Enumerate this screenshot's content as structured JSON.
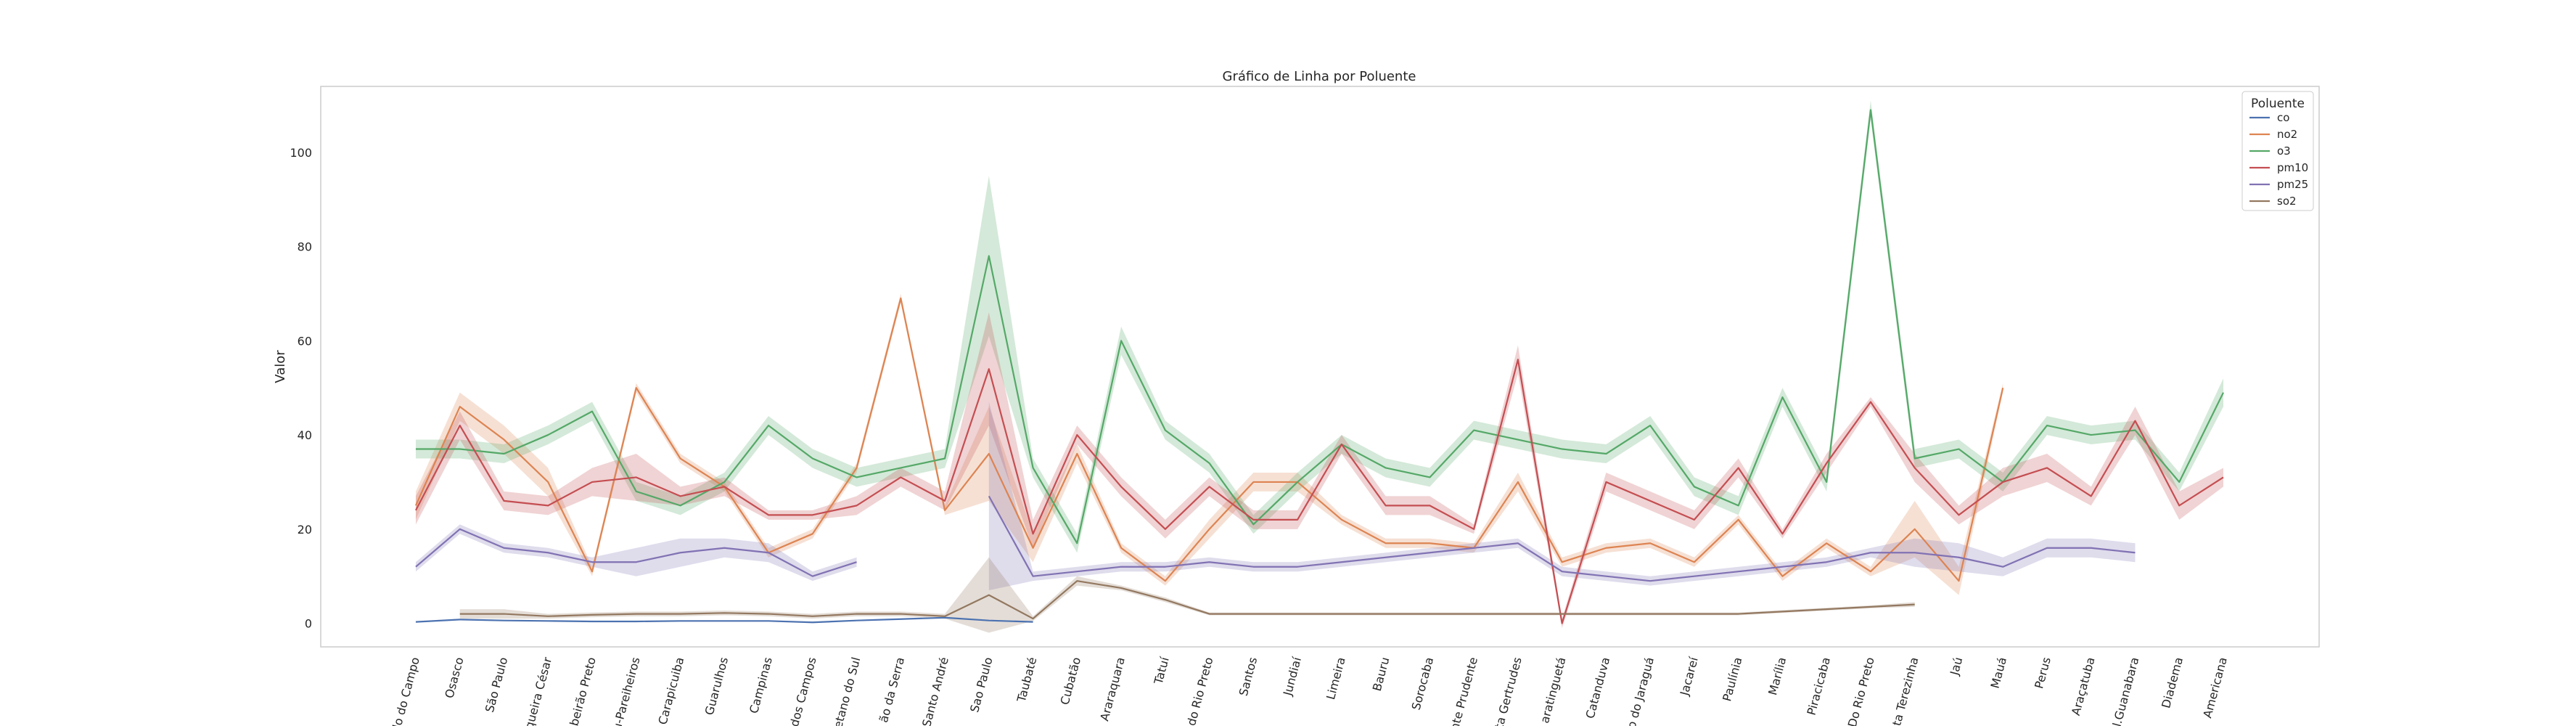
{
  "chart_data": {
    "type": "line",
    "title": "Gráfico de Linha por Poluente",
    "xlabel": "",
    "ylabel": "Valor",
    "ylim": [
      -5,
      114
    ],
    "yticks": [
      0,
      20,
      40,
      60,
      80,
      100
    ],
    "grid": false,
    "legend_placement": "top-right",
    "legend_title": "Poluente",
    "categories": [
      "lo do Campo",
      "Osasco",
      "São Paulo",
      "queira César",
      "beirão Preto",
      "ı-Pareiheiros",
      "Carapicuiba",
      "Guarulhos",
      "Campinas",
      "dos Campos",
      "etano do Sul",
      "ão da Serra",
      "Santo André",
      "Sao Paulo",
      "Taubaté",
      "Cubatão",
      "Araraquara",
      "Tatuí",
      "do Rio Preto",
      "Santos",
      "Jundiaí",
      "Limeira",
      "Bauru",
      "Sorocaba",
      "nte Prudente",
      "ta Gertrudes",
      "aratinguetá",
      "Catanduva",
      "o do Jaraguá",
      "Jacareí",
      "Paulínia",
      "Marília",
      "Piracicaba",
      "Do Rio Preto",
      "ta Terezinha",
      "Jaú",
      "Mauá",
      "Perus",
      "Araçatuba",
      "l.Guanabara",
      "Diadema",
      "Americana"
    ],
    "series": [
      {
        "name": "co",
        "color": "#4c72b0",
        "values": [
          0.3,
          0.8,
          0.6,
          0.5,
          0.4,
          0.4,
          0.5,
          0.5,
          0.5,
          0.2,
          0.6,
          0.9,
          1.2,
          0.6,
          0.3,
          null,
          null,
          null,
          null,
          null,
          null,
          null,
          null,
          null,
          null,
          null,
          null,
          null,
          null,
          null,
          null,
          null,
          null,
          null,
          null,
          null,
          null,
          null,
          null,
          null,
          null,
          null
        ]
      },
      {
        "name": "no2",
        "color": "#dd8452",
        "values": [
          25,
          46,
          39,
          30,
          11,
          50,
          35,
          29,
          15,
          19,
          33,
          69,
          24,
          36,
          16,
          36,
          16,
          9,
          20,
          30,
          30,
          22,
          17,
          17,
          16,
          30,
          13,
          16,
          17,
          13,
          22,
          10,
          17,
          11,
          20,
          9,
          50,
          null,
          null,
          null,
          null,
          null
        ],
        "band": [
          3,
          3,
          3,
          3,
          1,
          1,
          1,
          1,
          1,
          1,
          1,
          1,
          1,
          10,
          3,
          2,
          1,
          1,
          2,
          2,
          2,
          1,
          1,
          1,
          1,
          2,
          1,
          1,
          1,
          1,
          1,
          1,
          1,
          1,
          6,
          3,
          1,
          null,
          null,
          null,
          null,
          null
        ]
      },
      {
        "name": "o3",
        "color": "#55a868",
        "values": [
          37,
          37,
          36,
          40,
          45,
          28,
          25,
          30,
          42,
          35,
          31,
          33,
          35,
          78,
          33,
          17,
          60,
          41,
          34,
          21,
          30,
          38,
          33,
          31,
          41,
          39,
          37,
          36,
          42,
          29,
          25,
          48,
          30,
          109,
          35,
          37,
          30,
          42,
          40,
          41,
          30,
          49
        ],
        "band": [
          2,
          2,
          2,
          2,
          2,
          2,
          2,
          2,
          2,
          2,
          2,
          2,
          2,
          17,
          2,
          2,
          3,
          2,
          2,
          2,
          2,
          2,
          2,
          2,
          2,
          2,
          2,
          2,
          2,
          2,
          2,
          2,
          2,
          2,
          2,
          2,
          2,
          2,
          2,
          2,
          2,
          3
        ]
      },
      {
        "name": "pm10",
        "color": "#c44e52",
        "values": [
          24,
          42,
          26,
          25,
          30,
          31,
          27,
          29,
          23,
          23,
          25,
          31,
          26,
          54,
          19,
          40,
          29,
          20,
          29,
          22,
          22,
          38,
          25,
          25,
          20,
          56,
          0,
          30,
          26,
          22,
          33,
          19,
          34,
          47,
          33,
          23,
          30,
          33,
          27,
          43,
          25,
          31
        ],
        "band": [
          3,
          3,
          2,
          2,
          3,
          5,
          2,
          2,
          1,
          1,
          2,
          2,
          2,
          12,
          3,
          2,
          2,
          2,
          2,
          2,
          2,
          2,
          2,
          2,
          1,
          3,
          1,
          2,
          2,
          2,
          2,
          1,
          2,
          1,
          3,
          2,
          3,
          3,
          2,
          3,
          3,
          2
        ]
      },
      {
        "name": "pm25",
        "color": "#8172b3",
        "values": [
          12,
          20,
          16,
          15,
          13,
          13,
          15,
          16,
          15,
          10,
          13,
          null,
          null,
          27,
          10,
          11,
          12,
          12,
          13,
          12,
          12,
          13,
          14,
          15,
          16,
          17,
          11,
          10,
          9,
          10,
          11,
          12,
          13,
          15,
          15,
          14,
          12,
          16,
          16,
          15,
          null,
          null
        ],
        "band": [
          1,
          1,
          1,
          1,
          1,
          3,
          3,
          2,
          2,
          1,
          1,
          null,
          null,
          20,
          1,
          1,
          1,
          1,
          1,
          1,
          1,
          1,
          1,
          1,
          1,
          1,
          1,
          1,
          1,
          1,
          1,
          1,
          1,
          1,
          3,
          3,
          2,
          2,
          2,
          2,
          null,
          null
        ]
      },
      {
        "name": "so2",
        "color": "#937860",
        "values": [
          null,
          2,
          2,
          1.5,
          1.8,
          2,
          2,
          2.2,
          2,
          1.5,
          2,
          2,
          1.5,
          6,
          1,
          9,
          7.5,
          5,
          2,
          2,
          2,
          2,
          2,
          2,
          2,
          2,
          2,
          2,
          2,
          2,
          2,
          2.5,
          3,
          3.5,
          4,
          null,
          null,
          null,
          null,
          null,
          null,
          null
        ],
        "band": [
          null,
          1,
          1,
          0.5,
          0.5,
          0.5,
          0.5,
          0.5,
          0.5,
          0.5,
          0.5,
          0.5,
          0.5,
          8,
          0.5,
          1,
          0.5,
          0.5,
          0.3,
          0.3,
          0.3,
          0.3,
          0.3,
          0.3,
          0.3,
          0.3,
          0.3,
          0.3,
          0.3,
          0.3,
          0.3,
          0.3,
          0.3,
          0.3,
          0.5,
          null,
          null,
          null,
          null,
          null,
          null,
          null
        ]
      }
    ]
  }
}
